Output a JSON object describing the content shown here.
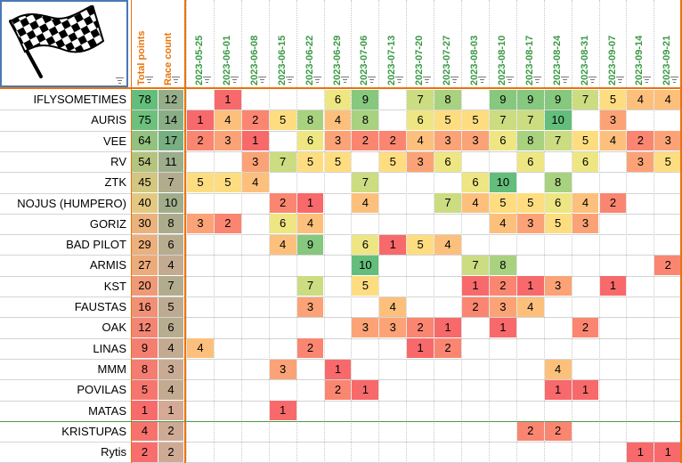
{
  "headers": {
    "total_points": "Total points",
    "race_count": "Race count"
  },
  "dates": [
    "2023-05-25",
    "2023-06-01",
    "2023-06-08",
    "2023-06-15",
    "2023-06-22",
    "2023-06-29",
    "2023-07-06",
    "2023-07-13",
    "2023-07-20",
    "2023-07-27",
    "2023-08-03",
    "2023-08-10",
    "2023-08-17",
    "2023-08-24",
    "2023-08-31",
    "2023-09-07",
    "2023-09-14",
    "2023-09-21"
  ],
  "rows": [
    {
      "name": "IFLYSOMETIMES",
      "total": "78",
      "count": "12",
      "results": [
        "",
        "1",
        "",
        "",
        "",
        "6",
        "9",
        "",
        "7",
        "8",
        "",
        "9",
        "9",
        "9",
        "7",
        "5",
        "4",
        "4"
      ]
    },
    {
      "name": "AURIS",
      "total": "75",
      "count": "14",
      "results": [
        "1",
        "4",
        "2",
        "5",
        "8",
        "4",
        "8",
        "",
        "6",
        "5",
        "5",
        "7",
        "7",
        "10",
        "",
        "3",
        "",
        ""
      ]
    },
    {
      "name": "VEE",
      "total": "64",
      "count": "17",
      "results": [
        "2",
        "3",
        "1",
        "",
        "6",
        "3",
        "2",
        "2",
        "4",
        "3",
        "3",
        "6",
        "8",
        "7",
        "5",
        "4",
        "2",
        "3"
      ]
    },
    {
      "name": "RV",
      "total": "54",
      "count": "11",
      "results": [
        "",
        "",
        "3",
        "7",
        "5",
        "5",
        "",
        "5",
        "3",
        "6",
        "",
        "",
        "6",
        "",
        "6",
        "",
        "3",
        "5"
      ]
    },
    {
      "name": "ZTK",
      "total": "45",
      "count": "7",
      "results": [
        "5",
        "5",
        "4",
        "",
        "",
        "",
        "7",
        "",
        "",
        "",
        "6",
        "10",
        "",
        "8",
        "",
        "",
        "",
        ""
      ]
    },
    {
      "name": "NOJUS (HUMPERO)",
      "total": "40",
      "count": "10",
      "results": [
        "",
        "",
        "",
        "2",
        "1",
        "",
        "4",
        "",
        "",
        "7",
        "4",
        "5",
        "5",
        "6",
        "4",
        "2",
        "",
        ""
      ]
    },
    {
      "name": "GORIZ",
      "total": "30",
      "count": "8",
      "results": [
        "3",
        "2",
        "",
        "6",
        "4",
        "",
        "",
        "",
        "",
        "",
        "",
        "4",
        "3",
        "5",
        "3",
        "",
        "",
        ""
      ]
    },
    {
      "name": "BAD PILOT",
      "total": "29",
      "count": "6",
      "results": [
        "",
        "",
        "",
        "4",
        "9",
        "",
        "6",
        "1",
        "5",
        "4",
        "",
        "",
        "",
        "",
        "",
        "",
        "",
        ""
      ]
    },
    {
      "name": "ARMIS",
      "total": "27",
      "count": "4",
      "results": [
        "",
        "",
        "",
        "",
        "",
        "",
        "10",
        "",
        "",
        "",
        "7",
        "8",
        "",
        "",
        "",
        "",
        "",
        "2"
      ]
    },
    {
      "name": "KST",
      "total": "20",
      "count": "7",
      "results": [
        "",
        "",
        "",
        "",
        "7",
        "",
        "5",
        "",
        "",
        "",
        "1",
        "2",
        "1",
        "3",
        "",
        "1",
        "",
        ""
      ]
    },
    {
      "name": "FAUSTAS",
      "total": "16",
      "count": "5",
      "results": [
        "",
        "",
        "",
        "",
        "3",
        "",
        "",
        "4",
        "",
        "",
        "2",
        "3",
        "4",
        "",
        "",
        "",
        "",
        ""
      ]
    },
    {
      "name": "OAK",
      "total": "12",
      "count": "6",
      "results": [
        "",
        "",
        "",
        "",
        "",
        "",
        "3",
        "3",
        "2",
        "1",
        "",
        "1",
        "",
        "",
        "2",
        "",
        "",
        ""
      ]
    },
    {
      "name": "LINAS",
      "total": "9",
      "count": "4",
      "results": [
        "4",
        "",
        "",
        "",
        "2",
        "",
        "",
        "",
        "1",
        "2",
        "",
        "",
        "",
        "",
        "",
        "",
        "",
        ""
      ]
    },
    {
      "name": "MMM",
      "total": "8",
      "count": "3",
      "results": [
        "",
        "",
        "",
        "3",
        "",
        "1",
        "",
        "",
        "",
        "",
        "",
        "",
        "",
        "4",
        "",
        "",
        "",
        ""
      ]
    },
    {
      "name": "POVILAS",
      "total": "5",
      "count": "4",
      "results": [
        "",
        "",
        "",
        "",
        "",
        "2",
        "1",
        "",
        "",
        "",
        "",
        "",
        "",
        "1",
        "1",
        "",
        "",
        ""
      ]
    },
    {
      "name": "MATAS",
      "total": "1",
      "count": "1",
      "results": [
        "",
        "",
        "",
        "1",
        "",
        "",
        "",
        "",
        "",
        "",
        "",
        "",
        "",
        "",
        "",
        "",
        "",
        ""
      ]
    },
    {
      "name": "KRISTUPAS",
      "total": "4",
      "count": "2",
      "results": [
        "",
        "",
        "",
        "",
        "",
        "",
        "",
        "",
        "",
        "",
        "",
        "",
        "2",
        "2",
        "",
        "",
        "",
        ""
      ]
    },
    {
      "name": "Rytis",
      "total": "2",
      "count": "2",
      "results": [
        "",
        "",
        "",
        "",
        "",
        "",
        "",
        "",
        "",
        "",
        "",
        "",
        "",
        "",
        "",
        "",
        "1",
        "1"
      ]
    }
  ],
  "colors": {
    "accent_orange": "#e8740c",
    "date_green": "#3a9a45",
    "divider_green": "#4c9a4c",
    "logo_border": "#4a78b5"
  },
  "icons": {
    "logo": "checkered-flag-icon",
    "filter": "filter-dropdown-icon"
  }
}
